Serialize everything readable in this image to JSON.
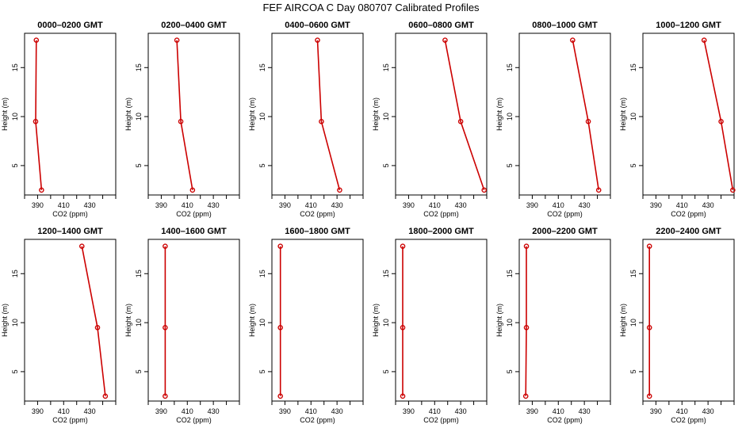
{
  "figure": {
    "title": "FEF AIRCOA C  Day 080707  Calibrated Profiles"
  },
  "colors": {
    "series": "#cc0000",
    "axes": "#000000",
    "background": "#ffffff"
  },
  "chart_data": [
    {
      "type": "line",
      "title": "0000–0200 GMT",
      "xlabel": "CO2 (ppm)",
      "ylabel": "Height (m)",
      "xlim": [
        380,
        450
      ],
      "ylim": [
        2,
        18.5
      ],
      "xticks": [
        390,
        410,
        430
      ],
      "yticks": [
        5,
        10,
        15
      ],
      "grid": false,
      "x": [
        389,
        388.5,
        393
      ],
      "y": [
        17.8,
        9.5,
        2.5
      ]
    },
    {
      "type": "line",
      "title": "0200–0400 GMT",
      "xlabel": "CO2 (ppm)",
      "ylabel": "Height (m)",
      "xlim": [
        380,
        450
      ],
      "ylim": [
        2,
        18.5
      ],
      "xticks": [
        390,
        410,
        430
      ],
      "yticks": [
        5,
        10,
        15
      ],
      "grid": false,
      "x": [
        402,
        405,
        414
      ],
      "y": [
        17.8,
        9.5,
        2.5
      ]
    },
    {
      "type": "line",
      "title": "0400–0600 GMT",
      "xlabel": "CO2 (ppm)",
      "ylabel": "Height (m)",
      "xlim": [
        380,
        450
      ],
      "ylim": [
        2,
        18.5
      ],
      "xticks": [
        390,
        410,
        430
      ],
      "yticks": [
        5,
        10,
        15
      ],
      "grid": false,
      "x": [
        415,
        418,
        432
      ],
      "y": [
        17.8,
        9.5,
        2.5
      ]
    },
    {
      "type": "line",
      "title": "0600–0800 GMT",
      "xlabel": "CO2 (ppm)",
      "ylabel": "Height (m)",
      "xlim": [
        380,
        450
      ],
      "ylim": [
        2,
        18.5
      ],
      "xticks": [
        390,
        410,
        430
      ],
      "yticks": [
        5,
        10,
        15
      ],
      "grid": false,
      "x": [
        418,
        430,
        448
      ],
      "y": [
        17.8,
        9.5,
        2.5
      ]
    },
    {
      "type": "line",
      "title": "0800–1000 GMT",
      "xlabel": "CO2 (ppm)",
      "ylabel": "Height (m)",
      "xlim": [
        380,
        450
      ],
      "ylim": [
        2,
        18.5
      ],
      "xticks": [
        390,
        410,
        430
      ],
      "yticks": [
        5,
        10,
        15
      ],
      "grid": false,
      "x": [
        421,
        433,
        441
      ],
      "y": [
        17.8,
        9.5,
        2.5
      ]
    },
    {
      "type": "line",
      "title": "1000–1200 GMT",
      "xlabel": "CO2 (ppm)",
      "ylabel": "Height (m)",
      "xlim": [
        380,
        450
      ],
      "ylim": [
        2,
        18.5
      ],
      "xticks": [
        390,
        410,
        430
      ],
      "yticks": [
        5,
        10,
        15
      ],
      "grid": false,
      "x": [
        427,
        440,
        449
      ],
      "y": [
        17.8,
        9.5,
        2.5
      ]
    },
    {
      "type": "line",
      "title": "1200–1400 GMT",
      "xlabel": "CO2 (ppm)",
      "ylabel": "Height (m)",
      "xlim": [
        380,
        450
      ],
      "ylim": [
        2,
        18.5
      ],
      "xticks": [
        390,
        410,
        430
      ],
      "yticks": [
        5,
        10,
        15
      ],
      "grid": false,
      "x": [
        424,
        436,
        442
      ],
      "y": [
        17.8,
        9.5,
        2.5
      ]
    },
    {
      "type": "line",
      "title": "1400–1600 GMT",
      "xlabel": "CO2 (ppm)",
      "ylabel": "Height (m)",
      "xlim": [
        380,
        450
      ],
      "ylim": [
        2,
        18.5
      ],
      "xticks": [
        390,
        410,
        430
      ],
      "yticks": [
        5,
        10,
        15
      ],
      "grid": false,
      "x": [
        393,
        393,
        393
      ],
      "y": [
        17.8,
        9.5,
        2.5
      ]
    },
    {
      "type": "line",
      "title": "1600–1800 GMT",
      "xlabel": "CO2 (ppm)",
      "ylabel": "Height (m)",
      "xlim": [
        380,
        450
      ],
      "ylim": [
        2,
        18.5
      ],
      "xticks": [
        390,
        410,
        430
      ],
      "yticks": [
        5,
        10,
        15
      ],
      "grid": false,
      "x": [
        386.5,
        386.5,
        386.5
      ],
      "y": [
        17.8,
        9.5,
        2.5
      ]
    },
    {
      "type": "line",
      "title": "1800–2000 GMT",
      "xlabel": "CO2 (ppm)",
      "ylabel": "Height (m)",
      "xlim": [
        380,
        450
      ],
      "ylim": [
        2,
        18.5
      ],
      "xticks": [
        390,
        410,
        430
      ],
      "yticks": [
        5,
        10,
        15
      ],
      "grid": false,
      "x": [
        385.5,
        385.5,
        385.5
      ],
      "y": [
        17.8,
        9.5,
        2.5
      ]
    },
    {
      "type": "line",
      "title": "2000–2200 GMT",
      "xlabel": "CO2 (ppm)",
      "ylabel": "Height (m)",
      "xlim": [
        380,
        450
      ],
      "ylim": [
        2,
        18.5
      ],
      "xticks": [
        390,
        410,
        430
      ],
      "yticks": [
        5,
        10,
        15
      ],
      "grid": false,
      "x": [
        385.5,
        385.5,
        385
      ],
      "y": [
        17.8,
        9.5,
        2.5
      ]
    },
    {
      "type": "line",
      "title": "2200–2400 GMT",
      "xlabel": "CO2 (ppm)",
      "ylabel": "Height (m)",
      "xlim": [
        380,
        450
      ],
      "ylim": [
        2,
        18.5
      ],
      "xticks": [
        390,
        410,
        430
      ],
      "yticks": [
        5,
        10,
        15
      ],
      "grid": false,
      "x": [
        385,
        385,
        385
      ],
      "y": [
        17.8,
        9.5,
        2.5
      ]
    }
  ]
}
